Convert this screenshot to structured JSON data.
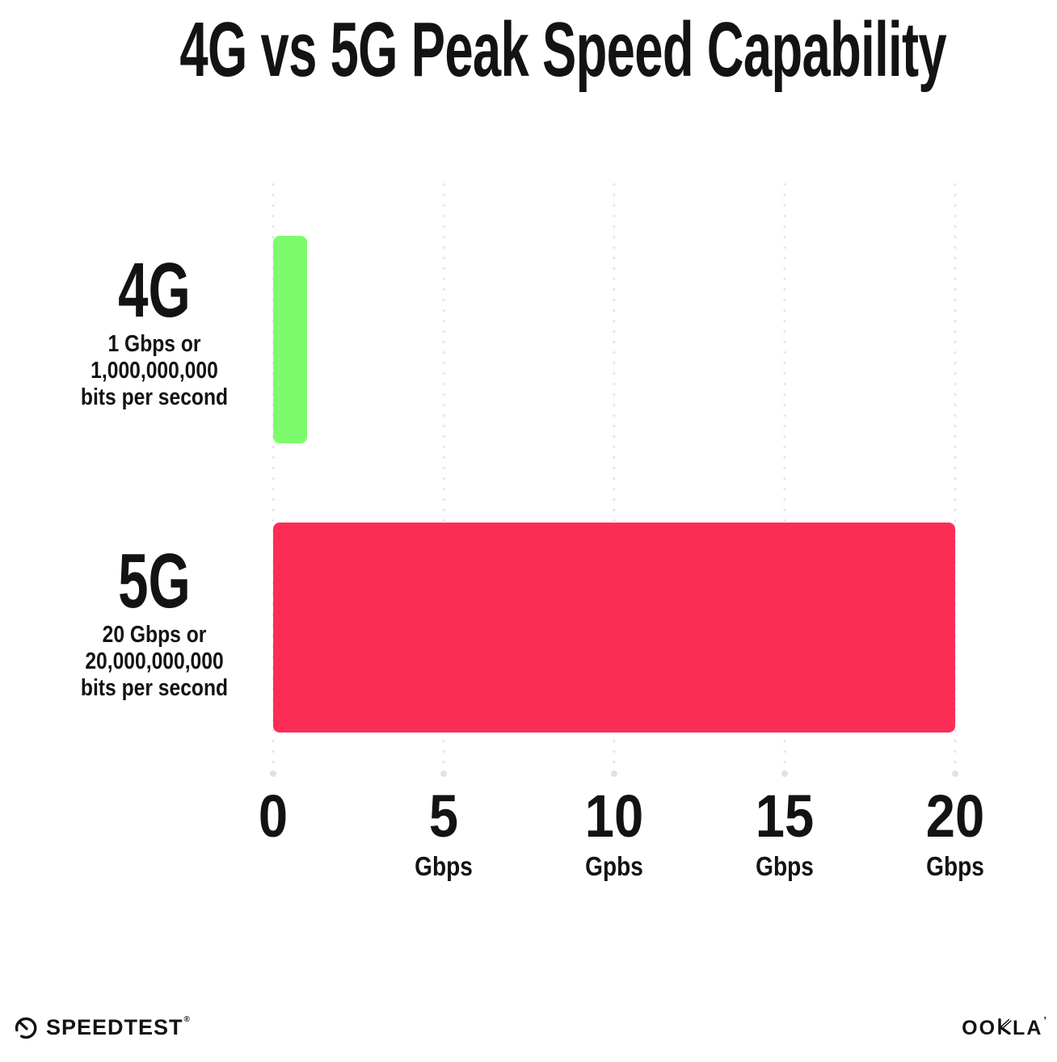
{
  "title": "4G vs 5G Peak Speed Capability",
  "rows": [
    {
      "label": "4G",
      "desc": [
        "1 Gbps or",
        "1,000,000,000",
        "bits per second"
      ]
    },
    {
      "label": "5G",
      "desc": [
        "20 Gbps or",
        "20,000,000,000",
        "bits per second"
      ]
    }
  ],
  "axis": {
    "ticks": [
      {
        "num": "0",
        "unit": ""
      },
      {
        "num": "5",
        "unit": "Gbps"
      },
      {
        "num": "10",
        "unit": "Gpbs"
      },
      {
        "num": "15",
        "unit": "Gbps"
      },
      {
        "num": "20",
        "unit": "Gbps"
      }
    ]
  },
  "footer": {
    "speedtest": {
      "label": "SPEEDTEST",
      "mark": "®"
    },
    "ookla": {
      "text": "OOKLA",
      "oo": "OO",
      "la": "LA",
      "mark": "’"
    }
  },
  "colors": {
    "bar_4g": "#7EFB6C",
    "bar_5g": "#FC2D55",
    "grid_dot": "#E6E6F0",
    "text": "#131313",
    "background": "#FFFFFF"
  },
  "chart_data": {
    "type": "bar",
    "orientation": "horizontal",
    "title": "4G vs 5G Peak Speed Capability",
    "categories": [
      "4G",
      "5G"
    ],
    "values": [
      1,
      20
    ],
    "unit": "Gbps",
    "bar_labels": [
      "1 Gbps or 1,000,000,000 bits per second",
      "20 Gbps or 20,000,000,000 bits per second"
    ],
    "bar_colors": [
      "#7EFB6C",
      "#FC2D55"
    ],
    "xlim": [
      0,
      20
    ],
    "x_ticks": [
      0,
      5,
      10,
      15,
      20
    ],
    "x_tick_labels": [
      "0",
      "5 Gbps",
      "10 Gpbs",
      "15 Gbps",
      "20 Gbps"
    ],
    "grid": "vertical dotted",
    "legend_position": "none",
    "source_logos": [
      "Speedtest",
      "Ookla"
    ]
  }
}
